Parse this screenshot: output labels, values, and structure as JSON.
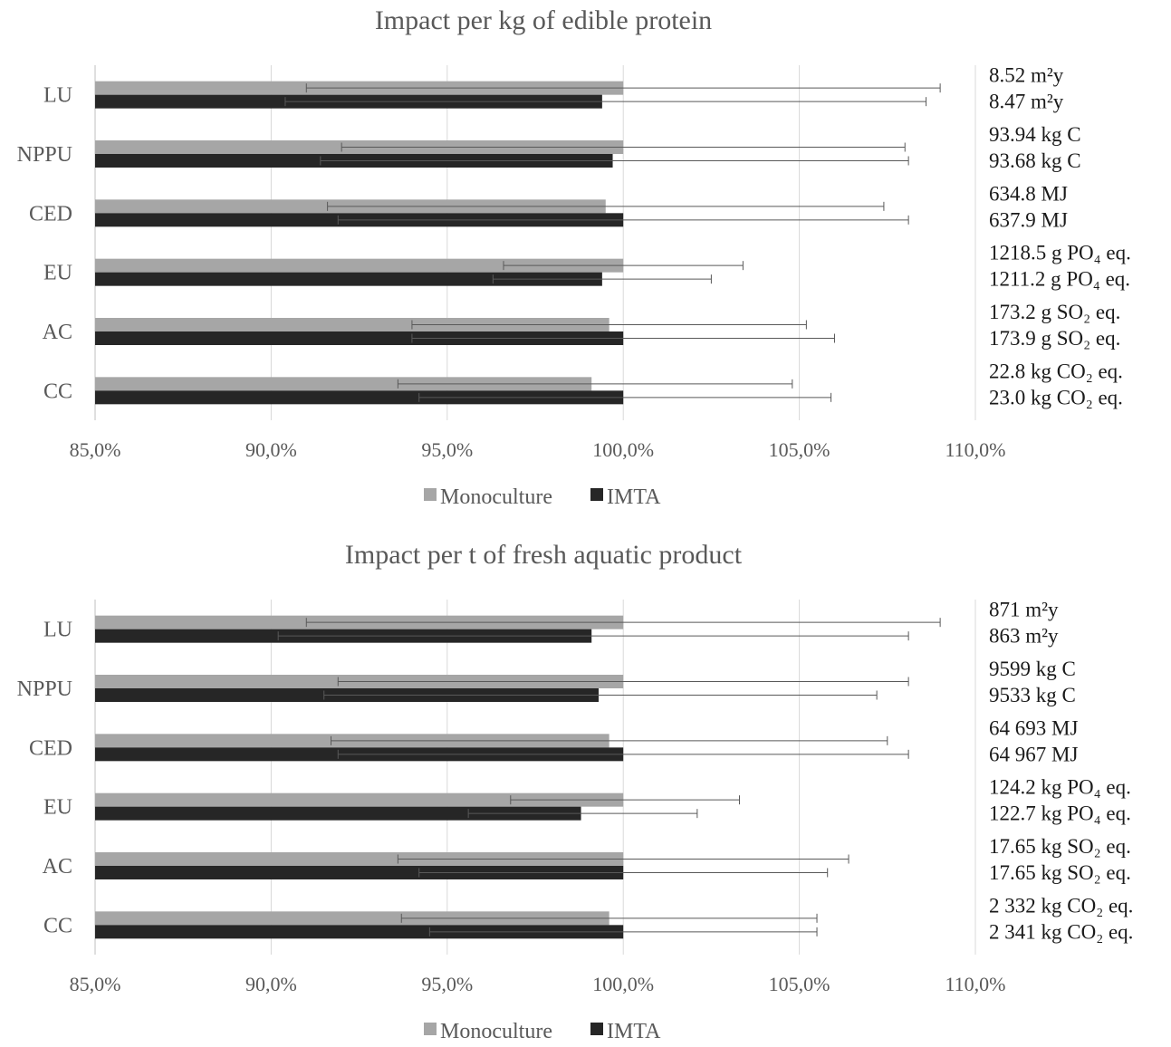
{
  "chart_data": [
    {
      "type": "bar",
      "orientation": "horizontal",
      "title": "Impact per kg of edible protein",
      "categories": [
        "LU",
        "NPPU",
        "CED",
        "EU",
        "AC",
        "CC"
      ],
      "series": [
        {
          "name": "Monoculture",
          "color": "#a6a6a6",
          "values": [
            100.0,
            100.0,
            99.5,
            100.0,
            99.6,
            99.1
          ],
          "error_low": [
            91.0,
            92.0,
            91.6,
            96.6,
            94.0,
            93.6
          ],
          "error_high": [
            109.0,
            108.0,
            107.4,
            103.4,
            105.2,
            104.8
          ]
        },
        {
          "name": "IMTA",
          "color": "#262626",
          "values": [
            99.4,
            99.7,
            100.0,
            99.4,
            100.0,
            100.0
          ],
          "error_low": [
            90.4,
            91.4,
            91.9,
            96.3,
            94.0,
            94.2
          ],
          "error_high": [
            108.6,
            108.1,
            108.1,
            102.5,
            106.0,
            105.9
          ]
        }
      ],
      "annotations": [
        [
          "8.52 m²y",
          "8.47 m²y"
        ],
        [
          "93.94 kg C",
          "93.68 kg C"
        ],
        [
          "634.8 MJ",
          "637.9 MJ"
        ],
        [
          "1218.5 g PO₄ eq.",
          "1211.2 g PO₄ eq."
        ],
        [
          "173.2 g SO₂ eq.",
          "173.9 g SO₂ eq."
        ],
        [
          "22.8 kg CO₂ eq.",
          "23.0 kg CO₂ eq."
        ]
      ],
      "x_ticks": [
        "85,0%",
        "90,0%",
        "95,0%",
        "100,0%",
        "105,0%",
        "110,0%"
      ],
      "xlim": [
        85,
        110
      ],
      "grid": true,
      "legend_position": "bottom"
    },
    {
      "type": "bar",
      "orientation": "horizontal",
      "title": "Impact per t of fresh aquatic product",
      "categories": [
        "LU",
        "NPPU",
        "CED",
        "EU",
        "AC",
        "CC"
      ],
      "series": [
        {
          "name": "Monoculture",
          "color": "#a6a6a6",
          "values": [
            100.0,
            100.0,
            99.6,
            100.0,
            100.0,
            99.6
          ],
          "error_low": [
            91.0,
            91.9,
            91.7,
            96.8,
            93.6,
            93.7
          ],
          "error_high": [
            109.0,
            108.1,
            107.5,
            103.3,
            106.4,
            105.5
          ]
        },
        {
          "name": "IMTA",
          "color": "#262626",
          "values": [
            99.1,
            99.3,
            100.0,
            98.8,
            100.0,
            100.0
          ],
          "error_low": [
            90.2,
            91.5,
            91.9,
            95.6,
            94.2,
            94.5
          ],
          "error_high": [
            108.1,
            107.2,
            108.1,
            102.1,
            105.8,
            105.5
          ]
        }
      ],
      "annotations": [
        [
          "871 m²y",
          "863 m²y"
        ],
        [
          "9599 kg C",
          "9533 kg C"
        ],
        [
          "64 693 MJ",
          "64 967 MJ"
        ],
        [
          "124.2 kg PO₄ eq.",
          "122.7 kg PO₄ eq."
        ],
        [
          "17.65 kg SO₂ eq.",
          "17.65 kg SO₂ eq."
        ],
        [
          "2 332 kg CO₂ eq.",
          "2 341 kg CO₂ eq."
        ]
      ],
      "x_ticks": [
        "85,0%",
        "90,0%",
        "95,0%",
        "100,0%",
        "105,0%",
        "110,0%"
      ],
      "xlim": [
        85,
        110
      ],
      "grid": true,
      "legend_position": "bottom"
    }
  ]
}
